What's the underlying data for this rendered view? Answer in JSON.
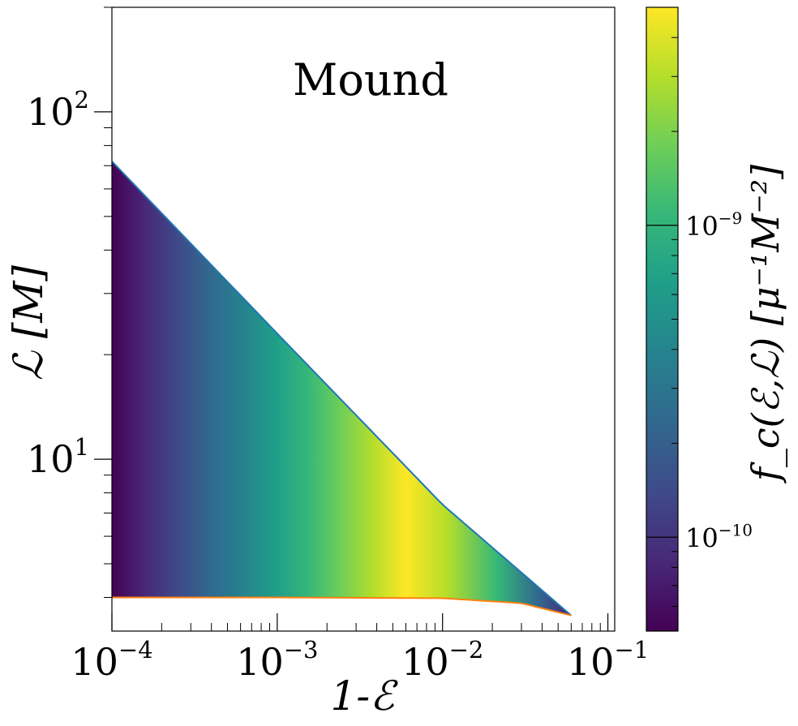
{
  "chart_data": {
    "type": "heatmap",
    "title": "",
    "annotation": "Mound",
    "xlabel": "1-ℰ",
    "ylabel": "ℒ [M]",
    "x_scale": "log",
    "y_scale": "log",
    "xlim": [
      0.0001,
      0.11
    ],
    "ylim": [
      3.2,
      200
    ],
    "x_tick_labels": [
      {
        "value": 0.0001,
        "base": "10",
        "exp": "−4"
      },
      {
        "value": 0.001,
        "base": "10",
        "exp": "−3"
      },
      {
        "value": 0.01,
        "base": "10",
        "exp": "−2"
      },
      {
        "value": 0.1,
        "base": "10",
        "exp": "−1"
      }
    ],
    "y_tick_labels": [
      {
        "value": 10,
        "base": "10",
        "exp": "1"
      },
      {
        "value": 100,
        "base": "10",
        "exp": "2"
      }
    ],
    "region": {
      "x_min": 0.0001,
      "x_max": 0.06,
      "peak_x": 0.006,
      "upper_boundary": {
        "x": [
          0.0001,
          0.001,
          0.01,
          0.06
        ],
        "y": [
          72,
          23,
          7.4,
          3.55
        ]
      },
      "lower_boundary": {
        "x": [
          0.0001,
          0.001,
          0.01,
          0.03,
          0.06
        ],
        "y": [
          4.0,
          4.0,
          3.98,
          3.85,
          3.55
        ]
      }
    },
    "lines": [
      {
        "name": "upper",
        "color": "#1f77b4"
      },
      {
        "name": "lower",
        "color": "#ff7f0e"
      }
    ],
    "colorbar": {
      "label": "f_c(ℰ,ℒ) [μ⁻¹M⁻²]",
      "scale": "log",
      "range": [
        5e-11,
        5e-09
      ],
      "tick_labels": [
        {
          "value": 1e-10,
          "base": "10",
          "exp": "−10"
        },
        {
          "value": 1e-09,
          "base": "10",
          "exp": "−9"
        }
      ],
      "colormap": "viridis",
      "colors": [
        "#440154",
        "#482878",
        "#3e4a89",
        "#31688e",
        "#26828e",
        "#1f9e89",
        "#35b779",
        "#6ece58",
        "#b5de2b",
        "#fde725"
      ]
    },
    "grid": false
  }
}
